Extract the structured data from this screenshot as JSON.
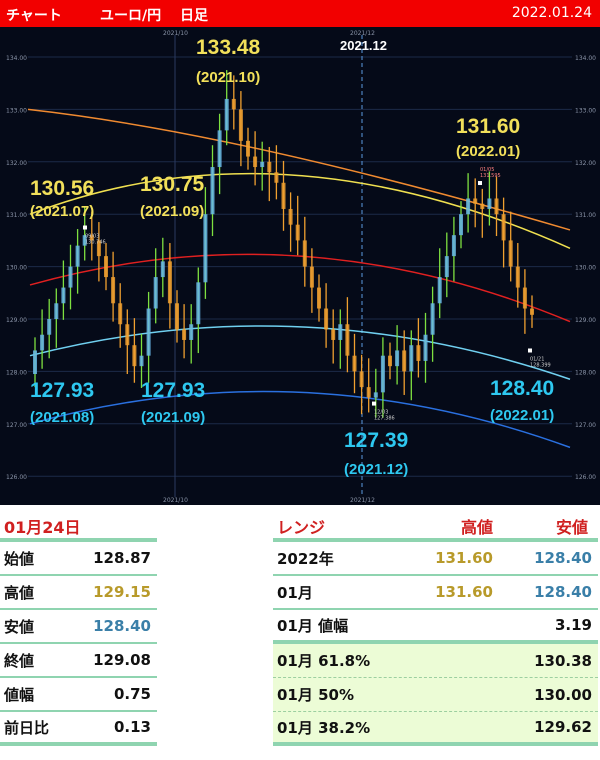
{
  "header": {
    "title": "チャート",
    "pair": "ユーロ/円",
    "period": "日足",
    "date": "2022.01.24"
  },
  "chart_data": {
    "type": "candlestick",
    "ylim": [
      126,
      134
    ],
    "yticks": [
      "134.00",
      "133.00",
      "132.00",
      "131.00",
      "130.00",
      "129.00",
      "128.00",
      "127.00",
      "126.00"
    ],
    "xticks": [
      "2021/10",
      "2021/12"
    ],
    "current_marker": "2021.12",
    "closes": [
      128.4,
      128.7,
      129.0,
      129.3,
      129.6,
      130.0,
      130.4,
      130.6,
      130.5,
      130.2,
      129.8,
      129.3,
      128.9,
      128.5,
      128.1,
      128.3,
      129.2,
      129.8,
      130.1,
      129.3,
      128.8,
      128.6,
      128.9,
      129.7,
      131.0,
      131.9,
      132.6,
      133.2,
      133.0,
      132.4,
      132.1,
      131.9,
      132.0,
      131.8,
      131.6,
      131.1,
      130.8,
      130.5,
      130.0,
      129.6,
      129.2,
      128.8,
      128.6,
      128.9,
      128.3,
      128.0,
      127.7,
      127.5,
      127.6,
      128.3,
      128.1,
      128.4,
      128.0,
      128.5,
      128.2,
      128.7,
      129.3,
      129.8,
      130.2,
      130.6,
      131.0,
      131.3,
      131.2,
      131.1,
      131.3,
      131.0,
      130.5,
      130.0,
      129.6,
      129.2,
      129.08
    ],
    "annotations": [
      {
        "value": "133.48",
        "period": "(2021.10)",
        "type": "high"
      },
      {
        "value": "130.56",
        "period": "(2021.07)",
        "type": "high"
      },
      {
        "value": "130.75",
        "period": "(2021.09)",
        "type": "high"
      },
      {
        "value": "131.60",
        "period": "(2022.01)",
        "type": "high"
      },
      {
        "value": "127.93",
        "period": "(2021.08)",
        "type": "low"
      },
      {
        "value": "127.93",
        "period": "(2021.09)",
        "type": "low"
      },
      {
        "value": "127.39",
        "period": "(2021.12)",
        "type": "low"
      },
      {
        "value": "128.40",
        "period": "(2022.01)",
        "type": "low"
      }
    ],
    "point_labels": [
      {
        "date": "12/03",
        "value": "127.386"
      },
      {
        "date": "01/05",
        "value": "131.595"
      },
      {
        "date": "01/21",
        "value": "128.399"
      },
      {
        "date": "09/03",
        "value": "130.746"
      }
    ],
    "colors": {
      "up": "#7ee040",
      "down": "#f0a030",
      "curve_top": "#f08a30",
      "curve_upper": "#f0e050",
      "curve_mid": "#e02020",
      "curve_lower": "#70d0f0",
      "curve_bottom": "#2a70e0"
    }
  },
  "day": {
    "title": "01月24日",
    "rows": [
      {
        "label": "始値",
        "value": "128.87",
        "color": ""
      },
      {
        "label": "高値",
        "value": "129.15",
        "color": "gold"
      },
      {
        "label": "安値",
        "value": "128.40",
        "color": "blue"
      },
      {
        "label": "終値",
        "value": "129.08",
        "color": ""
      },
      {
        "label": "値幅",
        "value": "0.75",
        "color": ""
      },
      {
        "label": "前日比",
        "value": "0.13",
        "color": ""
      }
    ]
  },
  "range": {
    "title": "レンジ",
    "high_label": "高値",
    "low_label": "安値",
    "rows": [
      {
        "label": "2022年",
        "high": "131.60",
        "low": "128.40"
      },
      {
        "label": "01月",
        "high": "131.60",
        "low": "128.40"
      }
    ],
    "width": {
      "label": "01月 値幅",
      "value": "3.19"
    },
    "fib": [
      {
        "label": "01月  61.8%",
        "value": "130.38"
      },
      {
        "label": "01月  50%",
        "value": "130.00"
      },
      {
        "label": "01月  38.2%",
        "value": "129.62"
      }
    ]
  }
}
